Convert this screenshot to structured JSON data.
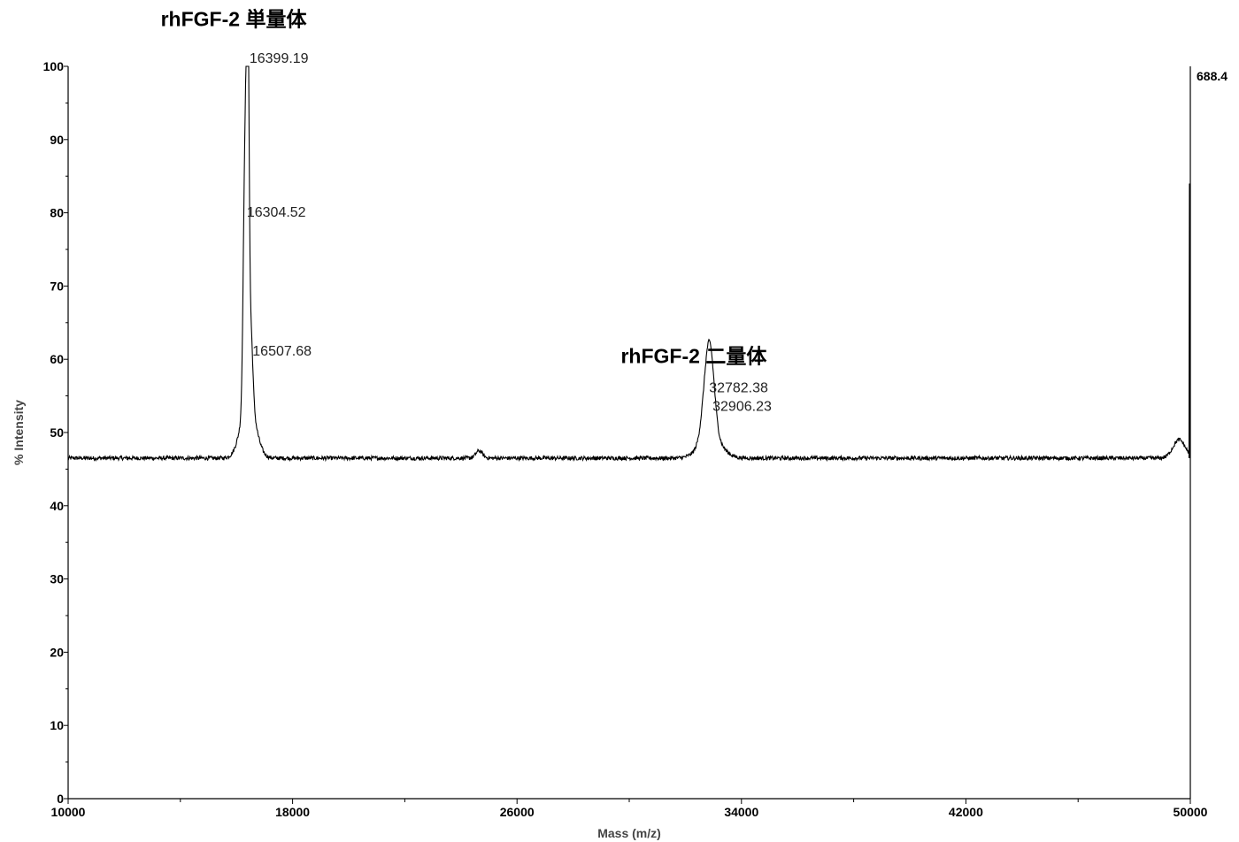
{
  "chart_data": {
    "type": "line",
    "xlabel": "Mass (m/z)",
    "ylabel": "% Intensity",
    "xlim": [
      10000,
      50000
    ],
    "ylim": [
      0,
      100
    ],
    "x_ticks": [
      10000,
      18000,
      26000,
      34000,
      42000,
      50000
    ],
    "y_ticks": [
      0,
      10,
      20,
      30,
      40,
      50,
      60,
      70,
      80,
      90,
      100
    ],
    "right_scale_label": "688.4",
    "baseline": 46.5,
    "peaks": [
      {
        "x": 16300,
        "y": 79
      },
      {
        "x": 16399.19,
        "y": 100
      },
      {
        "x": 16507.68,
        "y": 57
      },
      {
        "x": 24650,
        "y": 47.5
      },
      {
        "x": 32782.38,
        "y": 54
      },
      {
        "x": 32906.23,
        "y": 53
      },
      {
        "x": 49600,
        "y": 49
      }
    ],
    "peak_labels": [
      {
        "text": "16399.19",
        "x": 16399.19,
        "y": 100
      },
      {
        "text": "16304.52",
        "x": 16304.52,
        "y": 79
      },
      {
        "text": "16507.68",
        "x": 16507.68,
        "y": 60
      },
      {
        "text": "32782.38",
        "x": 32782.38,
        "y": 55
      },
      {
        "text": "32906.23",
        "x": 32906.23,
        "y": 52.5
      }
    ],
    "annotations": [
      {
        "text": "rhFGF-2  単量体",
        "x": 13300,
        "y": 105.5
      },
      {
        "text": "rhFGF-2  二量体",
        "x": 29700,
        "y": 59.5
      }
    ]
  }
}
